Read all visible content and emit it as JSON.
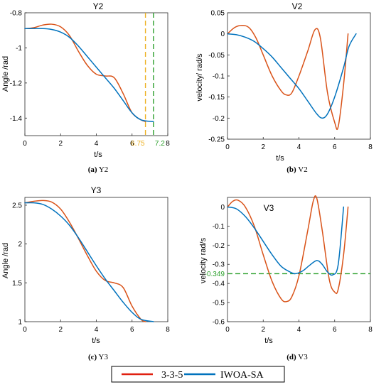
{
  "colors": {
    "series_3_3_5": "#D95319",
    "series_iwoa_sa": "#0072BD",
    "marker_yellow": "#EDB120",
    "marker_green": "#2CA02C",
    "axis": "#262626",
    "legend_red": "#E02010"
  },
  "legend": {
    "items": [
      {
        "label": "3-3-5",
        "color": "#E02010"
      },
      {
        "label": "IWOA-SA",
        "color": "#0072BD"
      }
    ]
  },
  "chart_data": [
    {
      "id": "Y2",
      "type": "line",
      "title": "Y2",
      "caption_letter": "(a)",
      "caption_text": "Y2",
      "xlabel": "t/s",
      "ylabel": "Angle /rad",
      "xlim": [
        0,
        8
      ],
      "ylim": [
        -1.5,
        -0.8
      ],
      "xticks": [
        0,
        2,
        4,
        6,
        8
      ],
      "yticks": [
        -0.8,
        -1,
        -1.2,
        -1.4
      ],
      "ytick_labels": [
        "-0.8",
        "-1",
        "-1.2",
        "-1.4"
      ],
      "grid": false,
      "series": [
        {
          "name": "3-3-5",
          "x": [
            0,
            0.5,
            1,
            1.5,
            2,
            2.5,
            3,
            3.5,
            4,
            4.5,
            5,
            5.5,
            6,
            6.5,
            6.75
          ],
          "y": [
            -0.89,
            -0.885,
            -0.87,
            -0.865,
            -0.88,
            -0.93,
            -1.02,
            -1.1,
            -1.15,
            -1.16,
            -1.17,
            -1.26,
            -1.37,
            -1.41,
            -1.42
          ]
        },
        {
          "name": "IWOA-SA",
          "x": [
            0,
            1,
            1.5,
            2,
            2.5,
            3,
            3.5,
            4,
            4.5,
            5,
            5.5,
            6,
            6.5,
            7.2
          ],
          "y": [
            -0.89,
            -0.89,
            -0.895,
            -0.91,
            -0.94,
            -0.99,
            -1.05,
            -1.11,
            -1.17,
            -1.23,
            -1.3,
            -1.37,
            -1.41,
            -1.42
          ]
        }
      ],
      "markers": [
        {
          "x": 6.75,
          "label": "6.75",
          "color": "#EDB120"
        },
        {
          "x": 7.2,
          "label": "7.2",
          "color": "#2CA02C"
        }
      ],
      "tick_labels_skip": [
        6.75,
        7.2
      ]
    },
    {
      "id": "V2",
      "type": "line",
      "title": "V2",
      "caption_letter": "(b)",
      "caption_text": "V2",
      "xlabel": "t/s",
      "ylabel": "velocity/ rad/s",
      "xlim": [
        0,
        8
      ],
      "ylim": [
        -0.25,
        0.05
      ],
      "xticks": [
        0,
        2,
        4,
        6,
        8
      ],
      "yticks": [
        0.05,
        0,
        -0.05,
        -0.1,
        -0.15,
        -0.2,
        -0.25
      ],
      "ytick_labels": [
        "0.05",
        "0",
        "-0.05",
        "-0.1",
        "-0.15",
        "-0.2",
        "-0.25"
      ],
      "grid": false,
      "series": [
        {
          "name": "3-3-5",
          "x": [
            0,
            0.4,
            0.8,
            1.2,
            1.6,
            2,
            2.5,
            3,
            3.3,
            3.6,
            4,
            4.5,
            4.9,
            5.2,
            5.6,
            6,
            6.2,
            6.5,
            6.75
          ],
          "y": [
            0,
            0.015,
            0.02,
            0.015,
            -0.01,
            -0.05,
            -0.1,
            -0.135,
            -0.145,
            -0.14,
            -0.1,
            -0.04,
            0.01,
            -0.01,
            -0.14,
            -0.21,
            -0.22,
            -0.12,
            0
          ]
        },
        {
          "name": "IWOA-SA",
          "x": [
            0,
            0.5,
            1,
            1.5,
            2,
            2.5,
            3,
            3.5,
            4,
            4.5,
            5,
            5.3,
            5.6,
            6,
            6.5,
            6.8,
            7.2
          ],
          "y": [
            0,
            -0.002,
            -0.008,
            -0.018,
            -0.035,
            -0.055,
            -0.08,
            -0.105,
            -0.13,
            -0.16,
            -0.19,
            -0.2,
            -0.19,
            -0.15,
            -0.08,
            -0.03,
            0
          ]
        }
      ]
    },
    {
      "id": "Y3",
      "type": "line",
      "title": "Y3",
      "caption_letter": "(c)",
      "caption_text": "Y3",
      "xlabel": "t/s",
      "ylabel": "Angle /rad",
      "xlim": [
        0,
        8
      ],
      "ylim": [
        1,
        2.6
      ],
      "xticks": [
        0,
        2,
        4,
        6,
        8
      ],
      "yticks": [
        2.5,
        2,
        1.5,
        1
      ],
      "ytick_labels": [
        "2.5",
        "2",
        "1.5",
        "1"
      ],
      "grid": false,
      "series": [
        {
          "name": "3-3-5",
          "x": [
            0,
            0.5,
            1,
            1.5,
            2,
            2.5,
            3,
            3.5,
            4,
            4.5,
            5,
            5.5,
            6,
            6.5,
            6.75
          ],
          "y": [
            2.53,
            2.55,
            2.56,
            2.54,
            2.45,
            2.28,
            2.07,
            1.85,
            1.65,
            1.53,
            1.5,
            1.44,
            1.2,
            1.03,
            1.0
          ]
        },
        {
          "name": "IWOA-SA",
          "x": [
            0,
            0.5,
            1,
            1.5,
            2,
            2.5,
            3,
            3.5,
            4,
            4.5,
            5,
            5.5,
            6,
            6.5,
            7.2
          ],
          "y": [
            2.53,
            2.53,
            2.51,
            2.45,
            2.36,
            2.24,
            2.08,
            1.9,
            1.72,
            1.55,
            1.4,
            1.25,
            1.12,
            1.03,
            1.0
          ]
        }
      ]
    },
    {
      "id": "V3",
      "type": "line",
      "title": "V3",
      "caption_letter": "(d)",
      "caption_text": "V3",
      "xlabel": "t/s",
      "ylabel": "velocity  rad/s",
      "xlim": [
        0,
        8
      ],
      "ylim": [
        -0.6,
        0.05
      ],
      "xticks": [
        0,
        2,
        4,
        6,
        8
      ],
      "yticks": [
        0,
        -0.1,
        -0.2,
        -0.3,
        -0.4,
        -0.5,
        -0.6
      ],
      "ytick_labels": [
        "0",
        "-0.1",
        "-0.2",
        "-0.3",
        "-0.4",
        "-0.5",
        "-0.6"
      ],
      "grid": false,
      "series": [
        {
          "name": "3-3-5",
          "x": [
            0,
            0.3,
            0.6,
            1,
            1.5,
            2,
            2.5,
            3,
            3.3,
            3.6,
            4,
            4.5,
            4.8,
            5.0,
            5.3,
            5.7,
            6,
            6.2,
            6.5,
            6.75
          ],
          "y": [
            0.0,
            0.03,
            0.035,
            0.0,
            -0.1,
            -0.25,
            -0.39,
            -0.48,
            -0.495,
            -0.47,
            -0.36,
            -0.12,
            0.03,
            0.045,
            -0.12,
            -0.38,
            -0.445,
            -0.43,
            -0.25,
            0.0
          ]
        },
        {
          "name": "IWOA-SA",
          "x": [
            0,
            0.5,
            1,
            1.5,
            2,
            2.5,
            3,
            3.5,
            3.8,
            4.2,
            4.6,
            5.0,
            5.3,
            5.6,
            5.9,
            6.2,
            6.5
          ],
          "y": [
            0,
            -0.01,
            -0.05,
            -0.11,
            -0.18,
            -0.25,
            -0.31,
            -0.34,
            -0.349,
            -0.335,
            -0.305,
            -0.28,
            -0.3,
            -0.34,
            -0.355,
            -0.3,
            0
          ]
        }
      ],
      "hline": {
        "y": -0.349,
        "label": "-0.349",
        "color": "#2CA02C"
      }
    }
  ]
}
